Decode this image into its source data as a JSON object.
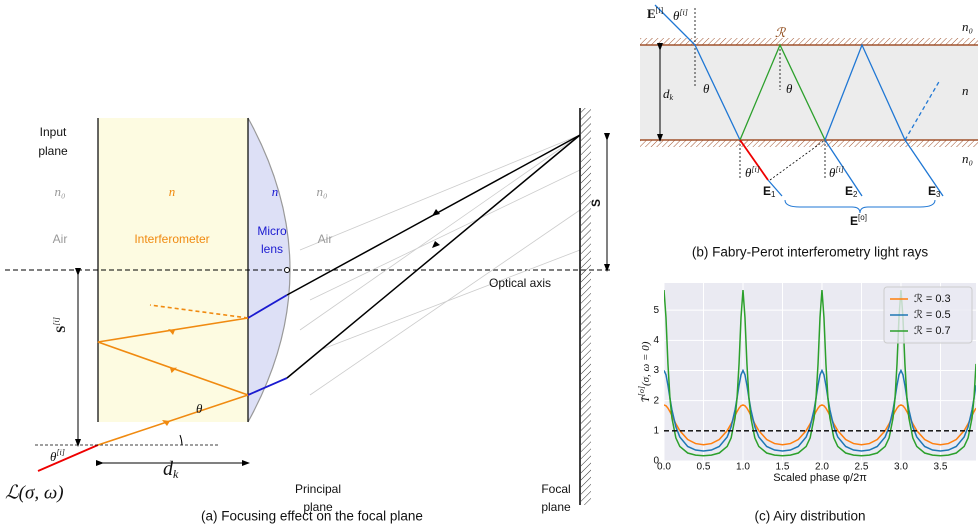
{
  "figure_a": {
    "input_plane": [
      "Input",
      "plane"
    ],
    "n0_left": "n₀",
    "n_interferometer": "n",
    "n_lens": "n",
    "n0_right": "n₀",
    "air_left": "Air",
    "interferometer": "Interferometer",
    "micro_lens": [
      "Micro",
      "lens"
    ],
    "air_right": "Air",
    "optical_axis": "Optical axis",
    "principal_plane": [
      "Principal",
      "plane"
    ],
    "focal_plane": [
      "Focal",
      "plane"
    ],
    "S": "S",
    "S_i": {
      "base": "S",
      "sup": "[i]"
    },
    "theta": "θ",
    "theta_i": {
      "base": "θ",
      "sup": "[i]"
    },
    "d_k": {
      "base": "d",
      "sub": "k"
    },
    "source": "ℒ(σ, ω)",
    "caption": "(a) Focusing effect on the focal plane"
  },
  "figure_b": {
    "E_i": {
      "base": "E",
      "sup": "[i]"
    },
    "theta_i_top": {
      "base": "θ",
      "sup": "[i]"
    },
    "R": "ℛ",
    "n0_top": "n₀",
    "n": "n",
    "n0_bottom": "n₀",
    "d_k": {
      "base": "d",
      "sub": "k"
    },
    "theta_left": "θ",
    "theta_right": "θ",
    "theta_i_1": {
      "base": "θ",
      "sup": "[i]"
    },
    "theta_i_2": {
      "base": "θ",
      "sup": "[i]"
    },
    "E_1": {
      "base": "E",
      "sub": "1"
    },
    "E_2": {
      "base": "E",
      "sub": "2"
    },
    "E_3": {
      "base": "E",
      "sub": "3"
    },
    "E_o": {
      "base": "E",
      "sup": "[o]"
    },
    "caption": "(b) Fabry-Perot interferometry light rays"
  },
  "chart_data": {
    "type": "line",
    "caption": "(c) Airy distribution",
    "xlabel": "Scaled phase φ/2π",
    "ylabel": {
      "base": "T̄",
      "sup": "[o]",
      "rest": "(σ, ω = 0)"
    },
    "x": [
      0,
      0.025,
      0.05,
      0.075,
      0.1,
      0.15,
      0.2,
      0.3,
      0.4,
      0.5,
      0.6,
      0.7,
      0.8,
      0.85,
      0.9,
      0.925,
      0.95,
      0.975,
      1,
      1.025,
      1.05,
      1.075,
      1.1,
      1.15,
      1.2,
      1.3,
      1.4,
      1.5,
      1.6,
      1.7,
      1.8,
      1.85,
      1.9,
      1.925,
      1.95,
      1.975,
      2,
      2.025,
      2.05,
      2.075,
      2.1,
      2.15,
      2.2,
      2.3,
      2.4,
      2.5,
      2.6,
      2.7,
      2.8,
      2.85,
      2.9,
      2.925,
      2.95,
      2.975,
      3,
      3.025,
      3.05,
      3.075,
      3.1,
      3.15,
      3.2,
      3.3,
      3.4,
      3.5,
      3.6,
      3.7,
      3.8,
      3.85,
      3.9,
      3.925,
      3.95
    ],
    "series": [
      {
        "name": "ℛ = 0.3",
        "color": "#ff7f0e",
        "values": [
          1.857,
          1.83,
          1.752,
          1.638,
          1.505,
          1.234,
          1.006,
          0.713,
          0.578,
          0.538,
          0.578,
          0.713,
          1.006,
          1.234,
          1.505,
          1.638,
          1.752,
          1.83,
          1.857,
          1.83,
          1.752,
          1.638,
          1.505,
          1.234,
          1.006,
          0.713,
          0.578,
          0.538,
          0.578,
          0.713,
          1.006,
          1.234,
          1.505,
          1.638,
          1.752,
          1.83,
          1.857,
          1.83,
          1.752,
          1.638,
          1.505,
          1.234,
          1.006,
          0.713,
          0.578,
          0.538,
          0.578,
          0.713,
          1.006,
          1.234,
          1.505,
          1.638,
          1.752,
          1.83,
          1.857,
          1.83,
          1.752,
          1.638,
          1.505,
          1.234,
          1.006,
          0.713,
          0.578,
          0.538,
          0.578,
          0.713,
          1.006,
          1.234,
          1.505,
          1.638,
          1.752
        ]
      },
      {
        "name": "ℛ = 0.5",
        "color": "#1f77b4",
        "values": [
          3,
          2.859,
          2.509,
          2.089,
          1.701,
          1.133,
          0.797,
          0.481,
          0.364,
          0.333,
          0.364,
          0.481,
          0.797,
          1.133,
          1.701,
          2.089,
          2.509,
          2.859,
          3,
          2.859,
          2.509,
          2.089,
          1.701,
          1.133,
          0.797,
          0.481,
          0.364,
          0.333,
          0.364,
          0.481,
          0.797,
          1.133,
          1.701,
          2.089,
          2.509,
          2.859,
          3,
          2.859,
          2.509,
          2.089,
          1.701,
          1.133,
          0.797,
          0.481,
          0.364,
          0.333,
          0.364,
          0.481,
          0.797,
          1.133,
          1.701,
          2.089,
          2.509,
          2.859,
          3,
          2.859,
          2.509,
          2.089,
          1.701,
          1.133,
          0.797,
          0.481,
          0.364,
          0.333,
          0.364,
          0.481,
          0.797,
          1.133,
          1.701,
          2.089,
          2.509
        ]
      },
      {
        "name": "ℛ = 0.7",
        "color": "#2ca02c",
        "values": [
          5.667,
          4.757,
          3.218,
          2.102,
          1.427,
          0.765,
          0.482,
          0.265,
          0.194,
          0.176,
          0.194,
          0.265,
          0.482,
          0.765,
          1.427,
          2.102,
          3.218,
          4.757,
          5.667,
          4.757,
          3.218,
          2.102,
          1.427,
          0.765,
          0.482,
          0.265,
          0.194,
          0.176,
          0.194,
          0.265,
          0.482,
          0.765,
          1.427,
          2.102,
          3.218,
          4.757,
          5.667,
          4.757,
          3.218,
          2.102,
          1.427,
          0.765,
          0.482,
          0.265,
          0.194,
          0.176,
          0.194,
          0.265,
          0.482,
          0.765,
          1.427,
          2.102,
          3.218,
          4.757,
          5.667,
          4.757,
          3.218,
          2.102,
          1.427,
          0.765,
          0.482,
          0.265,
          0.194,
          0.176,
          0.194,
          0.265,
          0.482,
          0.765,
          1.427,
          2.102,
          3.218
        ]
      }
    ],
    "hline": 1,
    "xlim": [
      0,
      3.95
    ],
    "ylim": [
      0,
      5.9
    ],
    "xticks": [
      {
        "value": 0,
        "label": "0.0"
      },
      0.5,
      {
        "value": 1,
        "label": "1.0"
      },
      1.5,
      {
        "value": 2,
        "label": "2.0"
      },
      2.5,
      {
        "value": 3,
        "label": "3.0"
      },
      3.5
    ],
    "yticks": [
      0,
      1,
      2,
      3,
      4,
      5
    ],
    "grid": true,
    "legend": "upper right"
  }
}
